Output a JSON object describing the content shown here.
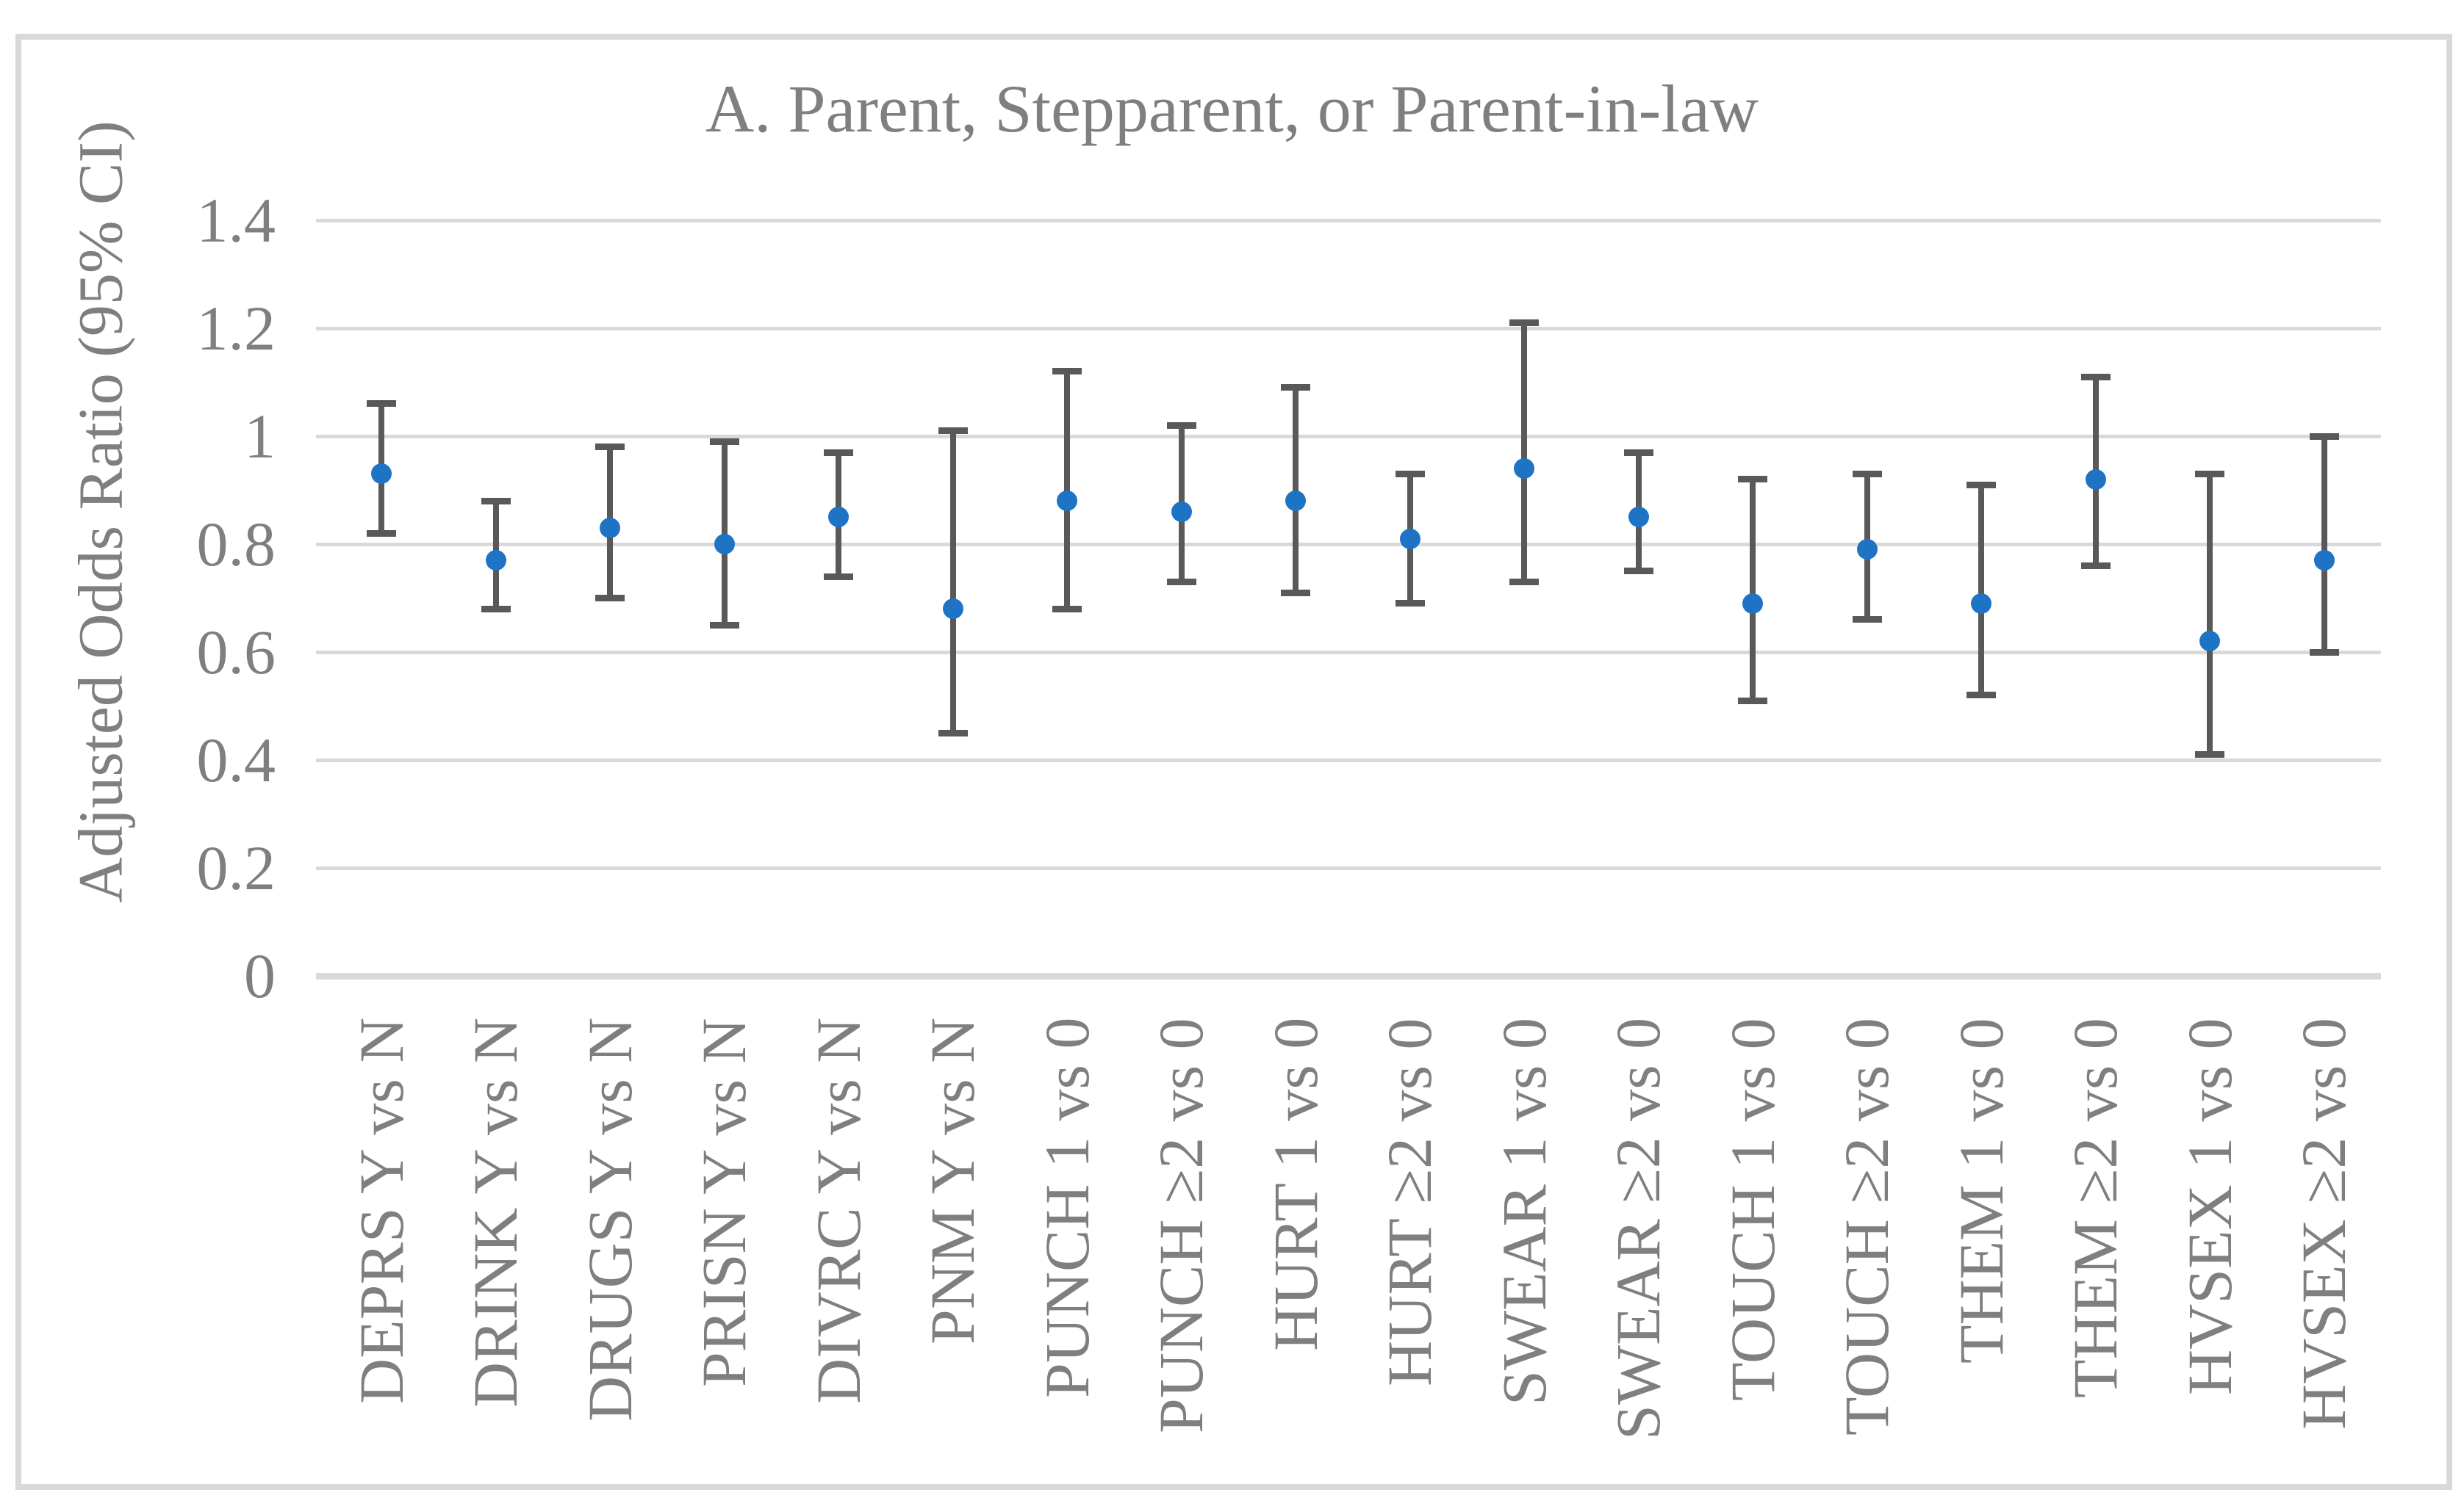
{
  "figure": {
    "title": "A. Parent, Stepparent, or Parent-in-law"
  },
  "chart_data": {
    "type": "scatter",
    "subtype": "point-estimates-with-95ci-error-bars",
    "title": "A. Parent, Stepparent, or Parent-in-law",
    "xlabel": "",
    "ylabel": "Adjusted Odds Ratio (95% CI)",
    "ylim": [
      0,
      1.4
    ],
    "yticks": [
      0,
      0.2,
      0.4,
      0.6,
      0.8,
      1,
      1.2,
      1.4
    ],
    "ytick_labels": [
      "0",
      "0.2",
      "0.4",
      "0.6",
      "0.8",
      "1",
      "1.2",
      "1.4"
    ],
    "grid": "horizontal-on",
    "legend": "none",
    "x_label_rotation_degrees": 90,
    "categories": [
      "DEPRS Y vs N",
      "DRINK Y vs N",
      "DRUGS Y vs N",
      "PRISN Y vs N",
      "DIVRC Y vs N",
      "PNM Y vs N",
      "PUNCH 1 vs 0",
      "PUNCH ≥2 vs 0",
      "HURT 1 vs 0",
      "HURT ≥2 vs 0",
      "SWEAR 1 vs 0",
      "SWEAR ≥2 vs 0",
      "TOUCH 1 vs 0",
      "TOUCH ≥2 vs 0",
      "THEM 1 vs 0",
      "THEM ≥2 vs 0",
      "HVSEX 1 vs 0",
      "HVSEX ≥2 vs 0"
    ],
    "series": [
      {
        "name": "Adjusted Odds Ratio",
        "values": [
          0.93,
          0.77,
          0.83,
          0.8,
          0.85,
          0.68,
          0.88,
          0.86,
          0.88,
          0.81,
          0.94,
          0.85,
          0.69,
          0.79,
          0.69,
          0.92,
          0.62,
          0.77
        ],
        "ci_low": [
          0.82,
          0.68,
          0.7,
          0.65,
          0.74,
          0.45,
          0.68,
          0.73,
          0.71,
          0.69,
          0.73,
          0.75,
          0.51,
          0.66,
          0.52,
          0.76,
          0.41,
          0.6
        ],
        "ci_high": [
          1.06,
          0.88,
          0.98,
          0.99,
          0.97,
          1.01,
          1.12,
          1.02,
          1.09,
          0.93,
          1.21,
          0.97,
          0.92,
          0.93,
          0.91,
          1.11,
          0.93,
          1.0
        ]
      }
    ],
    "colors": {
      "marker": "#1e73c4",
      "whisker": "#595959",
      "gridline": "#d9d9d9",
      "text": "#7f7f7f",
      "border": "#d9d9d9"
    }
  }
}
